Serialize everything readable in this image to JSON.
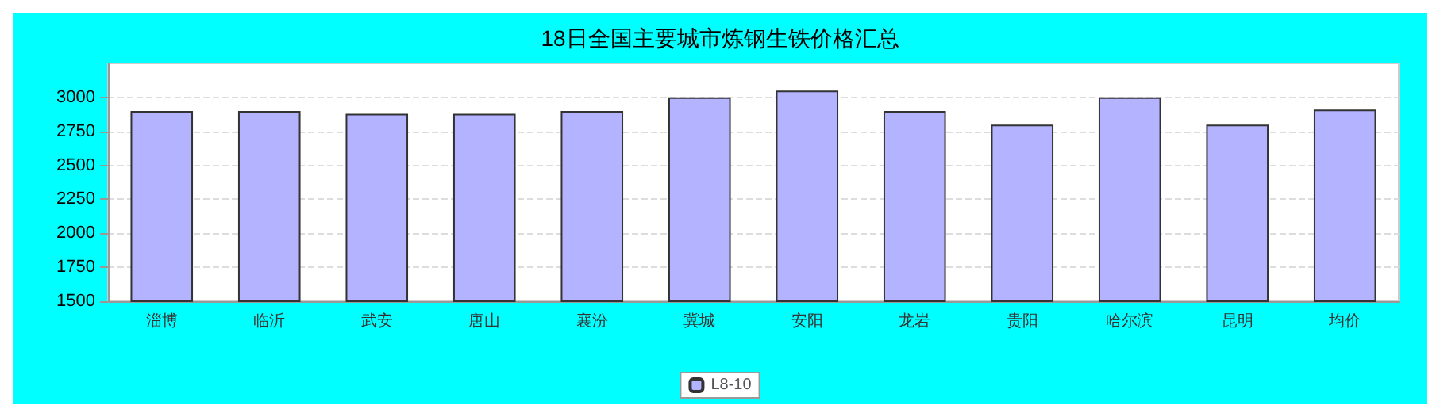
{
  "chart_data": {
    "type": "bar",
    "title": "18日全国主要城市炼钢生铁价格汇总",
    "categories": [
      "淄博",
      "临沂",
      "武安",
      "唐山",
      "襄汾",
      "冀城",
      "安阳",
      "龙岩",
      "贵阳",
      "哈尔滨",
      "昆明",
      "均价"
    ],
    "series": [
      {
        "name": "L8-10",
        "color": "#b3b3ff",
        "values": [
          2900,
          2900,
          2880,
          2880,
          2900,
          3000,
          3050,
          2900,
          2800,
          3000,
          2800,
          2910
        ]
      }
    ],
    "ylim": [
      1500,
      3250
    ],
    "yticks": [
      1500,
      1750,
      2000,
      2250,
      2500,
      2750,
      3000
    ],
    "grid": "y",
    "legend": "bottom"
  }
}
